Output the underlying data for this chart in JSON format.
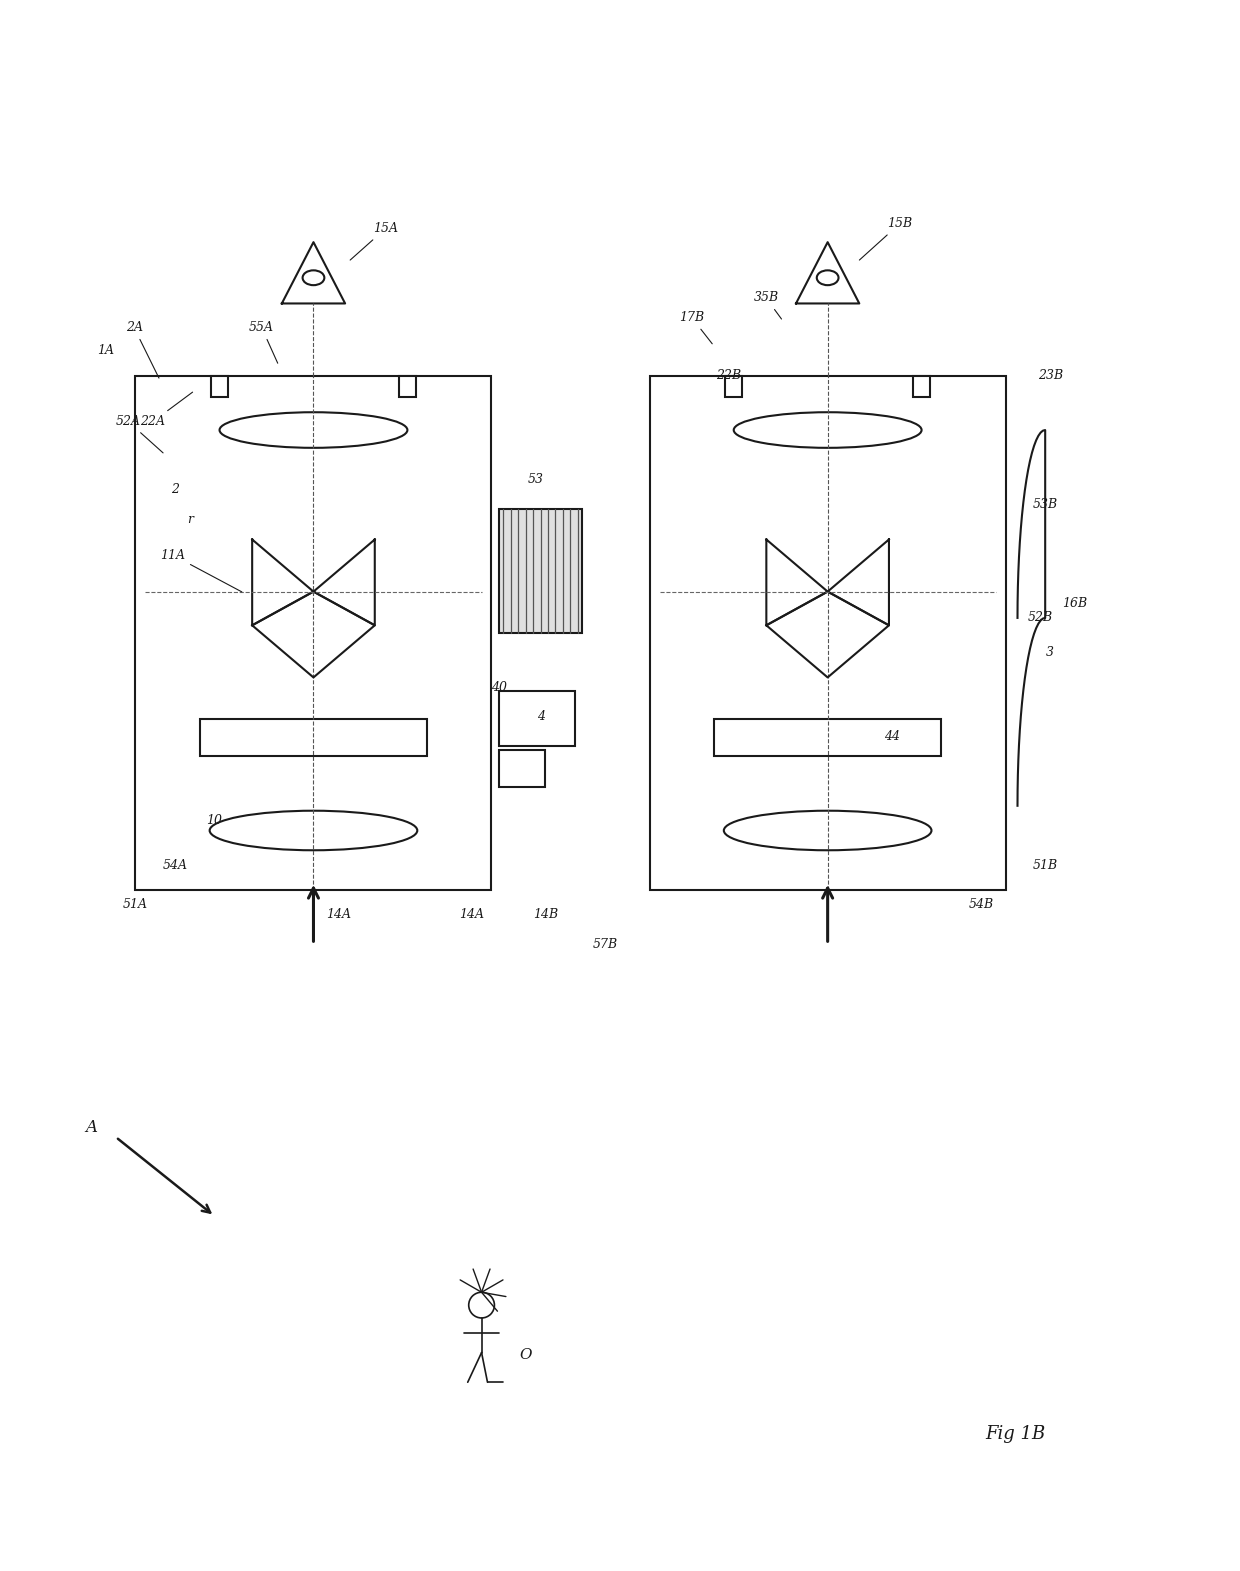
{
  "bg_color": "#ffffff",
  "line_color": "#1a1a1a",
  "lw": 1.5,
  "fig_width": 12.4,
  "fig_height": 15.71,
  "labels": {
    "fig_label": "Fig 1B",
    "obj_label": "O",
    "arrow_A": "A",
    "label_1A": "1A",
    "label_2A": "2A",
    "label_52A": "52A",
    "label_14A": "14A",
    "label_11A": "11A",
    "label_r": "r",
    "label_22A": "22A",
    "label_55A": "55A",
    "label_15A": "15A",
    "label_10": "10",
    "label_17B": "17B",
    "label_35B": "35B",
    "label_15B": "15B",
    "label_22B": "22B",
    "label_53B": "53B",
    "label_44": "44",
    "label_52B": "52B",
    "label_3": "3",
    "label_16B": "16B",
    "label_23B": "23B",
    "label_51B": "51B",
    "label_54B": "54B",
    "label_2": "2",
    "label_40": "40",
    "label_4": "4",
    "label_14B": "14B",
    "label_53": "53",
    "label_54A": "54A",
    "label_51A": "51A",
    "label_57B": "57B"
  }
}
